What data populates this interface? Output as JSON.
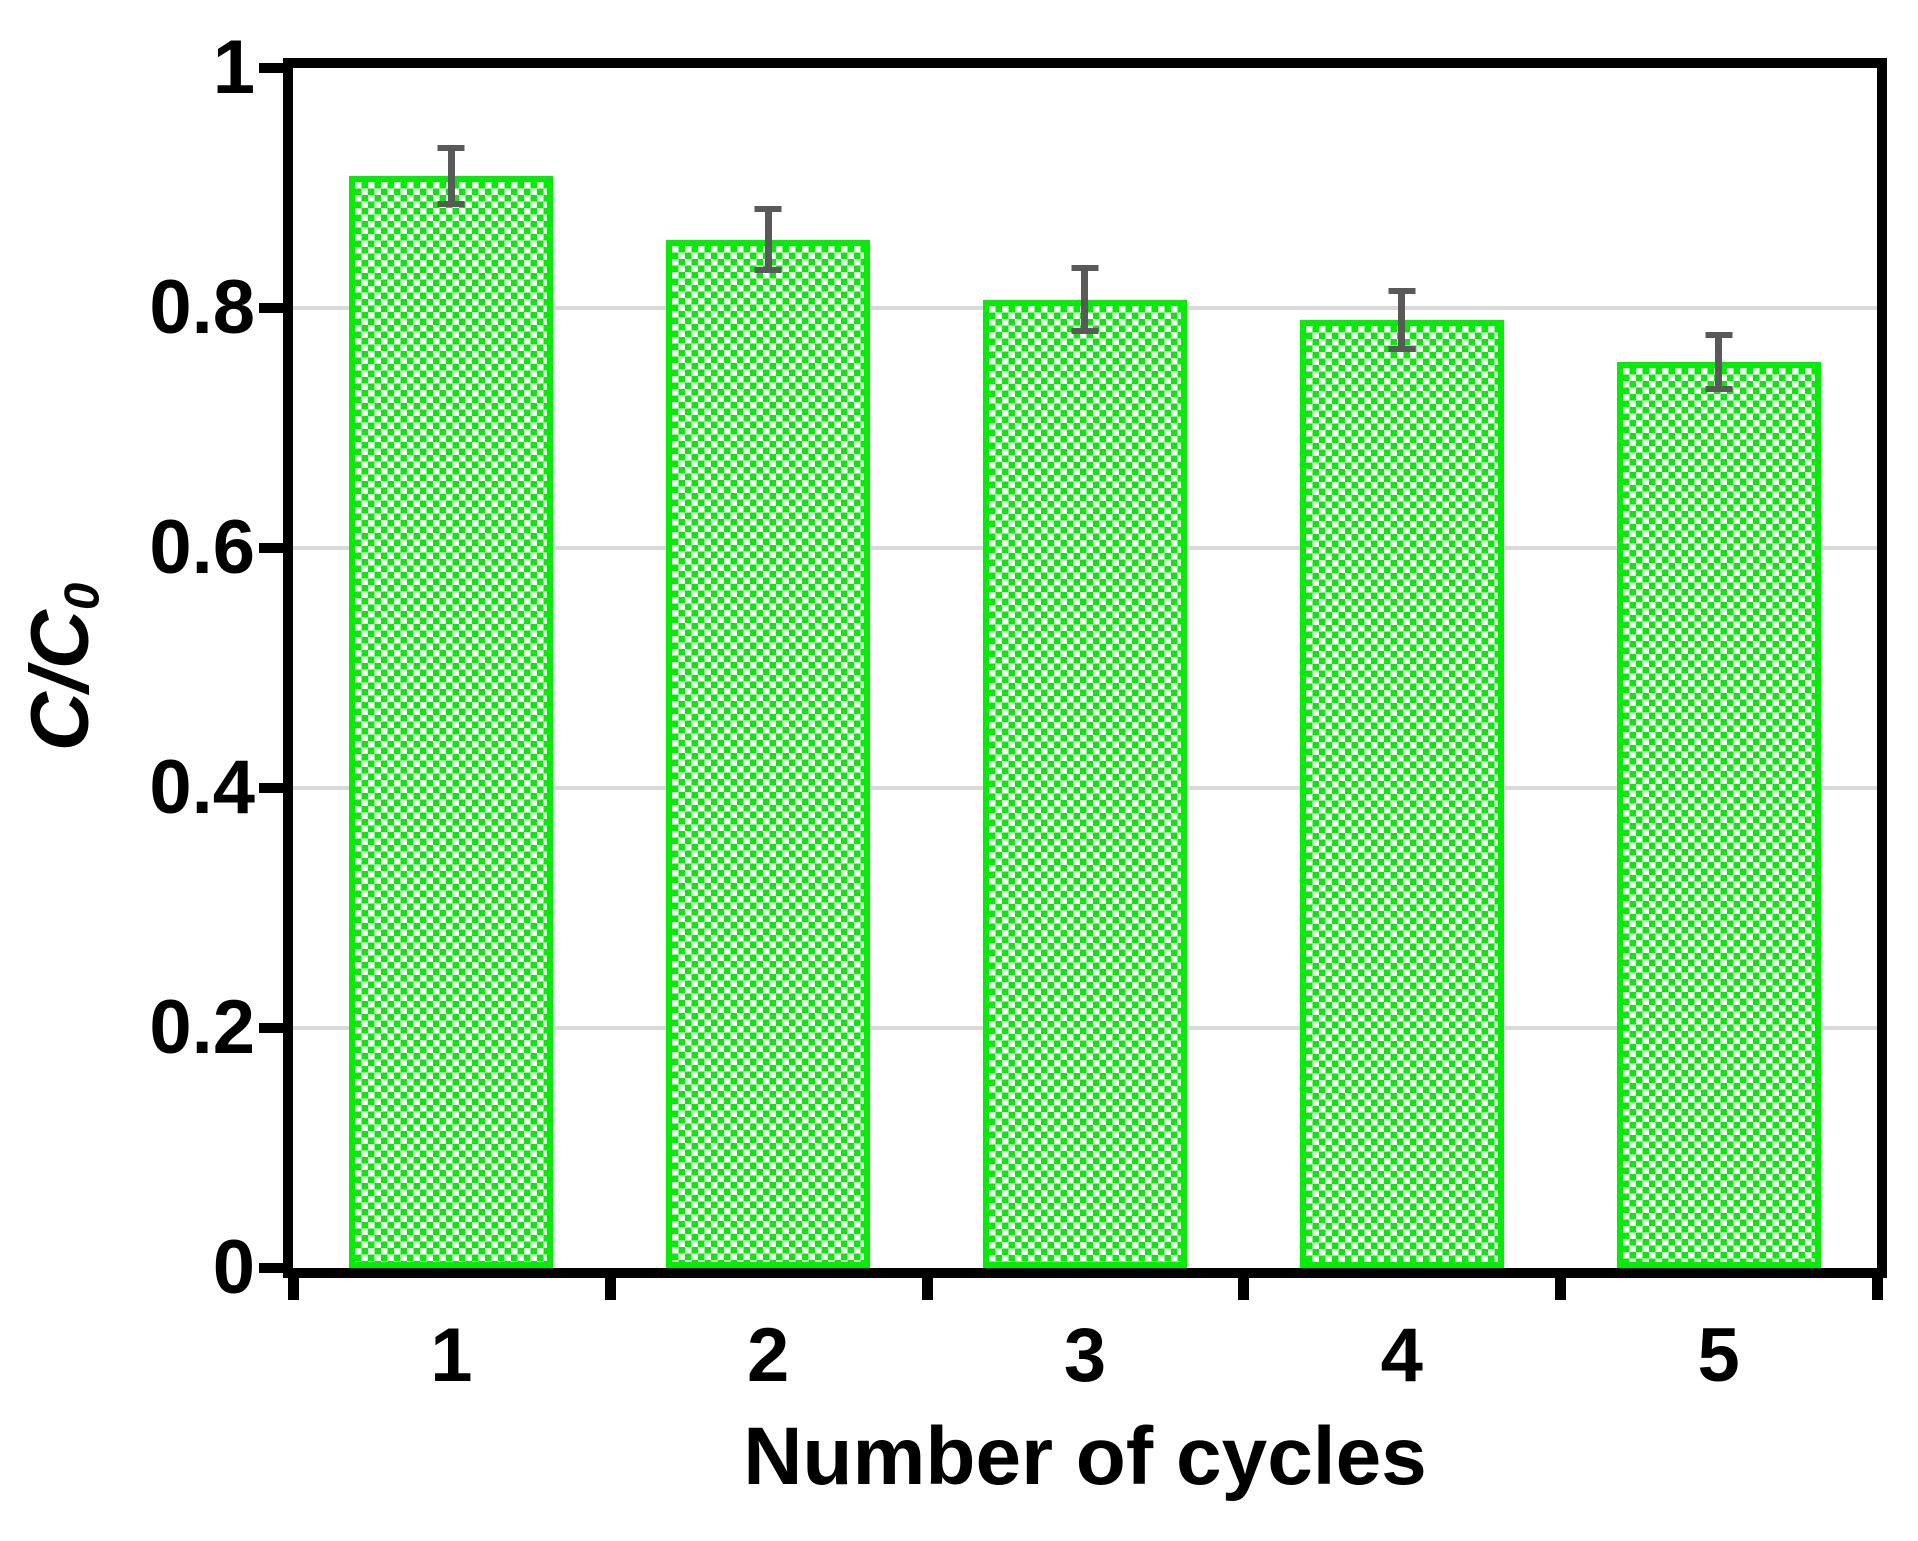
{
  "chart_data": {
    "type": "bar",
    "title": "",
    "xlabel": "Number of cycles",
    "ylabel_main": "C/C",
    "ylabel_sub": "0",
    "categories": [
      "1",
      "2",
      "3",
      "4",
      "5"
    ],
    "values": [
      0.91,
      0.857,
      0.807,
      0.79,
      0.755
    ],
    "error_bars": [
      0.026,
      0.028,
      0.029,
      0.027,
      0.025
    ],
    "ylim": [
      0,
      1
    ],
    "yticks": [
      0,
      0.2,
      0.4,
      0.6,
      0.8,
      1
    ],
    "ytick_labels": [
      "0",
      "0.2",
      "0.4",
      "0.6",
      "0.8",
      "1"
    ],
    "grid": "horizontal-at-yticks-excluding-limits",
    "legend": "none",
    "colors": {
      "bar_pattern_green": "#00ee00",
      "bar_pattern_style": "diagonal-checker-hatch-on-white",
      "error_bar_gray": "#595959",
      "gridline_gray": "#d9d9d9",
      "axis_black": "#000000",
      "background": "#ffffff"
    }
  }
}
